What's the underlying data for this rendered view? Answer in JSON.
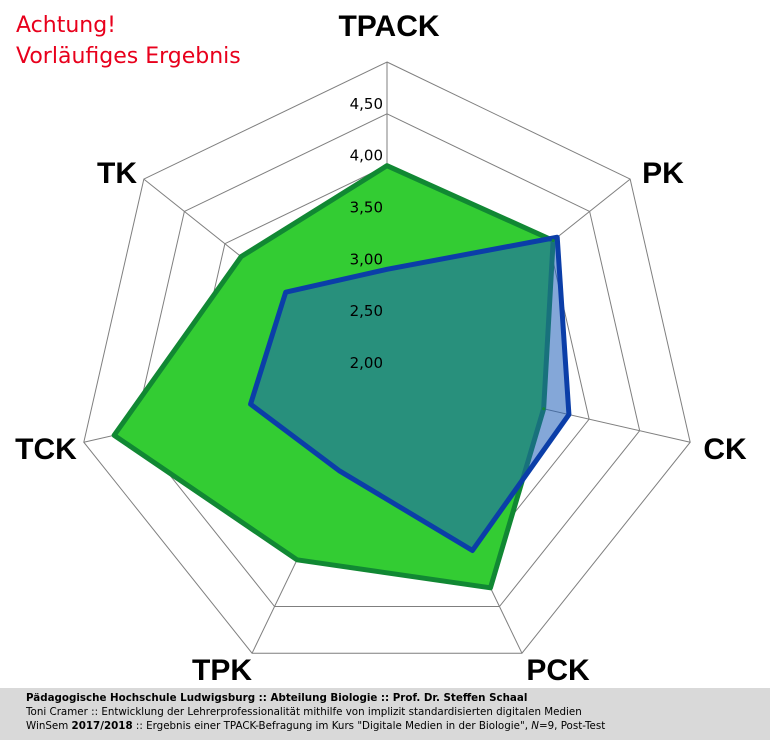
{
  "warning": {
    "line1": "Achtung!",
    "line2": "Vorläufiges Ergebnis"
  },
  "footer": {
    "line1": "Pädagogische Hochschule Ludwigsburg :: Abteilung Biologie :: Prof. Dr. Steffen Schaal",
    "line2": "Toni Cramer :: Entwicklung der Lehrerprofessionalität mithilfe von implizit standardisierten digitalen Medien",
    "line3": {
      "p1": "WinSem ",
      "p2": "2017/2018",
      "p3": " :: Ergebnis einer TPACK-Befragung im Kurs \"Digitale Medien in der Biologie\", ",
      "p4": "N",
      "p5": "=9",
      "p6": ", Post-Test"
    }
  },
  "chart_data": {
    "type": "radar",
    "categories": [
      "TPACK",
      "PK",
      "CK",
      "PCK",
      "TPK",
      "TCK",
      "TK"
    ],
    "tick_labels": [
      "2,00",
      "2,50",
      "3,00",
      "3,50",
      "4,00",
      "4,50"
    ],
    "range": [
      2.0,
      4.5
    ],
    "ticks": [
      2.0,
      2.5,
      3.0,
      3.5,
      4.0,
      4.5,
      5.0
    ],
    "series": [
      {
        "values": [
          4.0,
          4.05,
          3.55,
          4.3,
          4.0,
          4.7,
          3.8
        ],
        "fill": "#33cc33",
        "stroke": "#118833"
      },
      {
        "values": [
          3.0,
          4.1,
          3.8,
          3.9,
          3.05,
          3.35,
          3.25
        ],
        "fill": "#1f5eb8",
        "fill_opacity": 0.55,
        "stroke": "#0b3ea8"
      }
    ],
    "grid": true
  }
}
